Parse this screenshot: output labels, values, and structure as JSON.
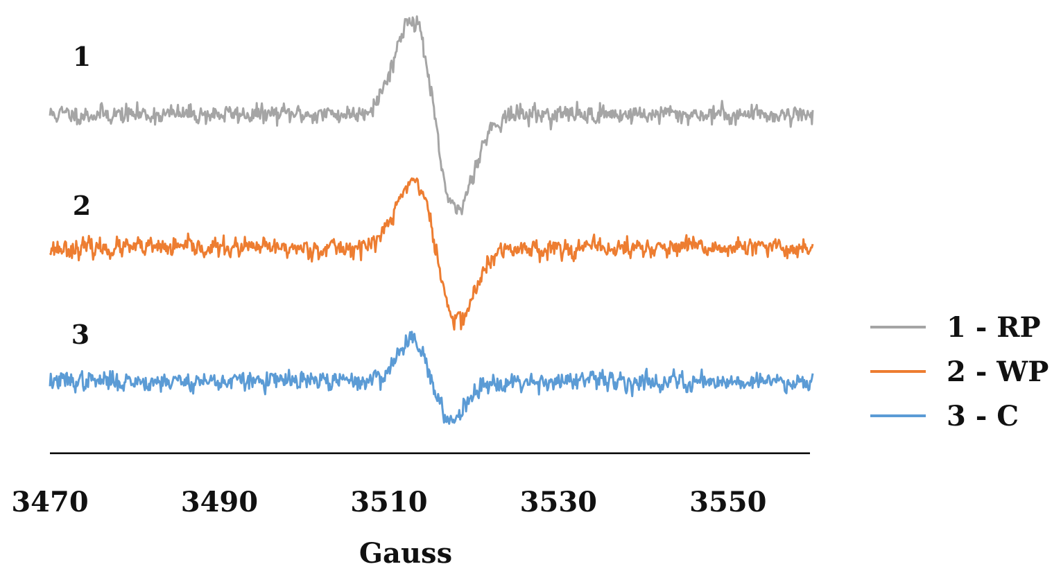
{
  "chart_data": {
    "type": "line",
    "xlabel": "Gauss",
    "ylabel": "",
    "xlim": [
      3470,
      3560
    ],
    "x_ticks": [
      3470,
      3490,
      3510,
      3530,
      3550
    ],
    "y_axis_visible": false,
    "grid": false,
    "legend_position": "right",
    "series": [
      {
        "name": "1 - RP",
        "trace_label": "1",
        "color": "#A5A5A5",
        "baseline_offset": 2.0,
        "signal": {
          "center": 3515.3,
          "amp_pos": 1.0,
          "amp_neg": 1.0,
          "width": 2.6,
          "noise": 0.045,
          "seed": 11
        }
      },
      {
        "name": "2 - WP",
        "trace_label": "2",
        "color": "#ED7D31",
        "baseline_offset": 1.0,
        "signal": {
          "center": 3515.5,
          "amp_pos": 0.7,
          "amp_neg": 0.75,
          "width": 2.6,
          "noise": 0.045,
          "seed": 23
        }
      },
      {
        "name": "3 - C",
        "trace_label": "3",
        "color": "#5B9BD5",
        "baseline_offset": 0.0,
        "signal": {
          "center": 3515.0,
          "amp_pos": 0.45,
          "amp_neg": 0.4,
          "width": 2.2,
          "noise": 0.045,
          "seed": 37
        }
      }
    ]
  }
}
